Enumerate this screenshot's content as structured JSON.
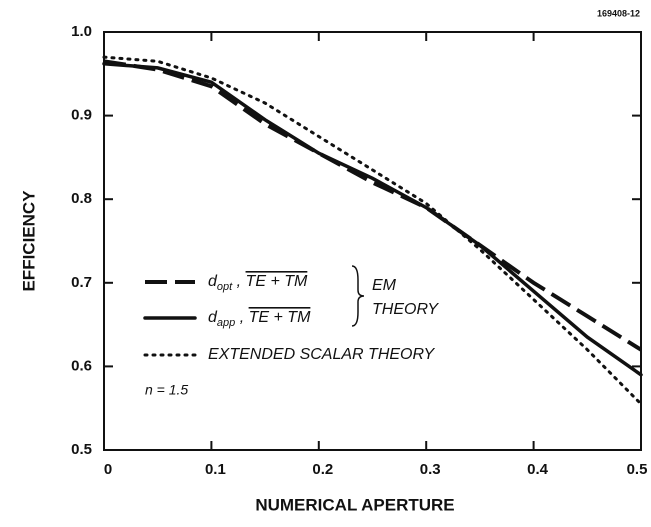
{
  "chart_data": {
    "type": "line",
    "figure_id": "169408-12",
    "xlabel": "NUMERICAL APERTURE",
    "ylabel": "EFFICIENCY",
    "x": [
      0,
      0.05,
      0.1,
      0.15,
      0.2,
      0.25,
      0.3,
      0.35,
      0.4,
      0.45,
      0.5
    ],
    "series": [
      {
        "name": "d",
        "name_sub": "opt",
        "name_suffix": "TE + TM",
        "style": "dashed",
        "color": "#111111",
        "values": [
          0.965,
          0.955,
          0.935,
          0.89,
          0.855,
          0.82,
          0.79,
          0.745,
          0.7,
          0.66,
          0.62
        ]
      },
      {
        "name": "d",
        "name_sub": "app",
        "name_suffix": "TE + TM",
        "style": "solid",
        "color": "#111111",
        "values": [
          0.962,
          0.957,
          0.94,
          0.895,
          0.855,
          0.825,
          0.79,
          0.745,
          0.69,
          0.635,
          0.59
        ]
      },
      {
        "name": "EXTENDED SCALAR THEORY",
        "style": "dotted",
        "color": "#111111",
        "values": [
          0.97,
          0.965,
          0.945,
          0.915,
          0.875,
          0.835,
          0.795,
          0.74,
          0.68,
          0.62,
          0.555
        ]
      }
    ],
    "annotations": [
      "EM",
      "THEORY",
      "n = 1.5"
    ],
    "xlim": [
      0,
      0.5
    ],
    "ylim": [
      0.5,
      1.0
    ],
    "xticks": [
      0,
      0.1,
      0.2,
      0.3,
      0.4,
      0.5
    ],
    "yticks": [
      0.5,
      0.6,
      0.7,
      0.8,
      0.9,
      {
        "value": 1.0,
        "label": "1.0"
      }
    ],
    "grid": false
  }
}
